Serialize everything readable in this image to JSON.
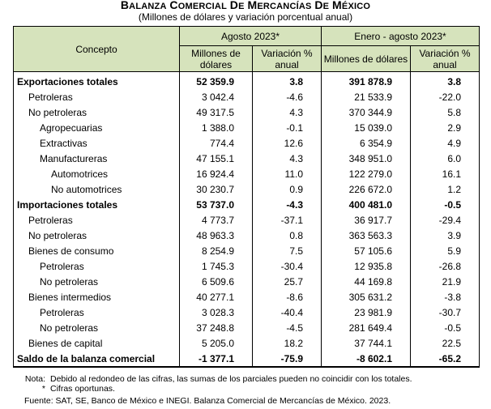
{
  "title": "Balanza Comercial de Mercancías de México",
  "subtitle": "(Millones de dólares y variación porcentual anual)",
  "header": {
    "concepto": "Concepto",
    "period1": "Agosto 2023*",
    "period2": "Enero - agosto 2023*",
    "col_mdd": "Millones de dólares",
    "col_var": "Variación % anual"
  },
  "rows": [
    {
      "label": "Exportaciones totales",
      "m1": "52 359.9",
      "v1": "3.8",
      "m2": "391 878.9",
      "v2": "3.8"
    },
    {
      "label": "Petroleras",
      "m1": "3 042.4",
      "v1": "-4.6",
      "m2": "21 533.9",
      "v2": "-22.0"
    },
    {
      "label": "No petroleras",
      "m1": "49 317.5",
      "v1": "4.3",
      "m2": "370 344.9",
      "v2": "5.8"
    },
    {
      "label": "Agropecuarias",
      "m1": "1 388.0",
      "v1": "-0.1",
      "m2": "15 039.0",
      "v2": "2.9"
    },
    {
      "label": "Extractivas",
      "m1": "774.4",
      "v1": "12.6",
      "m2": "6 354.9",
      "v2": "4.9"
    },
    {
      "label": "Manufactureras",
      "m1": "47 155.1",
      "v1": "4.3",
      "m2": "348 951.0",
      "v2": "6.0"
    },
    {
      "label": "Automotrices",
      "m1": "16 924.4",
      "v1": "11.0",
      "m2": "122 279.0",
      "v2": "16.1"
    },
    {
      "label": "No automotrices",
      "m1": "30 230.7",
      "v1": "0.9",
      "m2": "226 672.0",
      "v2": "1.2"
    },
    {
      "label": "Importaciones totales",
      "m1": "53 737.0",
      "v1": "-4.3",
      "m2": "400 481.0",
      "v2": "-0.5"
    },
    {
      "label": "Petroleras",
      "m1": "4 773.7",
      "v1": "-37.1",
      "m2": "36 917.7",
      "v2": "-29.4"
    },
    {
      "label": "No petroleras",
      "m1": "48 963.3",
      "v1": "0.8",
      "m2": "363 563.3",
      "v2": "3.9"
    },
    {
      "label": "Bienes de consumo",
      "m1": "8 254.9",
      "v1": "7.5",
      "m2": "57 105.6",
      "v2": "5.9"
    },
    {
      "label": "Petroleras",
      "m1": "1 745.3",
      "v1": "-30.4",
      "m2": "12 935.8",
      "v2": "-26.8"
    },
    {
      "label": "No petroleras",
      "m1": "6 509.6",
      "v1": "25.7",
      "m2": "44 169.8",
      "v2": "21.9"
    },
    {
      "label": "Bienes intermedios",
      "m1": "40 277.1",
      "v1": "-8.6",
      "m2": "305 631.2",
      "v2": "-3.8"
    },
    {
      "label": "Petroleras",
      "m1": "3 028.3",
      "v1": "-40.4",
      "m2": "23 981.9",
      "v2": "-30.7"
    },
    {
      "label": "No petroleras",
      "m1": "37 248.8",
      "v1": "-4.5",
      "m2": "281 649.4",
      "v2": "-0.5"
    },
    {
      "label": "Bienes de capital",
      "m1": "5 205.0",
      "v1": "18.2",
      "m2": "37 744.1",
      "v2": "22.5"
    },
    {
      "label": "Saldo de la balanza comercial",
      "m1": "-1 377.1",
      "v1": "-75.9",
      "m2": "-8 602.1",
      "v2": "-65.2"
    }
  ],
  "notes": {
    "nota_key": "Nota:",
    "nota_text": "Debido al redondeo de las cifras, las sumas de los parciales pueden no coincidir con los totales.",
    "star_key": "*",
    "star_text": "Cifras oportunas.",
    "source": "Fuente: SAT, SE, Banco de México e INEGI. Balanza Comercial de Mercancías de México. 2023."
  },
  "colors": {
    "header_bg": "#d6e3bc"
  }
}
